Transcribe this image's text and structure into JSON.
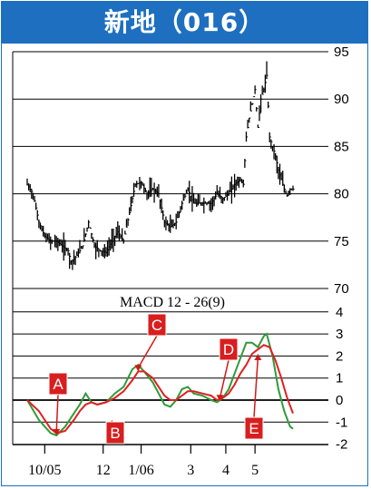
{
  "title": "新地（016）",
  "chart_data": [
    {
      "type": "candlestick",
      "title": "",
      "y_ticks": [
        70,
        75,
        80,
        85,
        90,
        95
      ],
      "ylim": [
        70,
        95
      ],
      "grid": "horizontal",
      "price_path": [
        [
          0,
          81
        ],
        [
          2,
          80
        ],
        [
          4,
          77
        ],
        [
          6,
          75.5
        ],
        [
          8,
          75
        ],
        [
          10,
          75
        ],
        [
          12,
          74.5
        ],
        [
          14,
          74
        ],
        [
          15,
          72.8
        ],
        [
          17,
          73.5
        ],
        [
          19,
          74.5
        ],
        [
          21,
          77
        ],
        [
          23,
          74.5
        ],
        [
          25,
          74
        ],
        [
          27,
          73.8
        ],
        [
          29,
          75
        ],
        [
          31,
          76
        ],
        [
          33,
          75
        ],
        [
          35,
          78
        ],
        [
          37,
          81
        ],
        [
          39,
          81.2
        ],
        [
          41,
          80
        ],
        [
          43,
          80.5
        ],
        [
          45,
          80
        ],
        [
          47,
          77
        ],
        [
          49,
          76.5
        ],
        [
          51,
          77
        ],
        [
          53,
          79
        ],
        [
          55,
          80.5
        ],
        [
          57,
          79
        ],
        [
          59,
          79
        ],
        [
          61,
          79
        ],
        [
          63,
          79
        ],
        [
          65,
          80
        ],
        [
          67,
          79.5
        ],
        [
          69,
          80
        ],
        [
          71,
          81
        ],
        [
          73,
          81.5
        ],
        [
          74,
          81
        ],
        [
          75,
          86
        ],
        [
          76,
          88
        ],
        [
          78,
          91
        ],
        [
          79,
          87
        ],
        [
          80,
          90
        ],
        [
          81,
          91
        ],
        [
          82,
          92.5
        ],
        [
          83,
          86
        ],
        [
          84,
          85
        ],
        [
          85,
          84
        ],
        [
          86,
          82.5
        ],
        [
          87,
          81.5
        ],
        [
          88,
          80.5
        ],
        [
          89,
          79.8
        ],
        [
          90,
          80.5
        ],
        [
          91,
          80.5
        ]
      ]
    },
    {
      "type": "line",
      "title": "MACD 12 - 26(9)",
      "y_ticks": [
        4,
        3,
        2,
        1,
        0,
        -1,
        -2
      ],
      "ylim": [
        -2,
        4
      ],
      "grid": "horizontal",
      "series": [
        {
          "name": "",
          "color": "#2f9a3a",
          "values": [
            [
              0,
              0
            ],
            [
              4,
              -0.9
            ],
            [
              8,
              -1.5
            ],
            [
              10,
              -1.6
            ],
            [
              13,
              -1.2
            ],
            [
              16,
              -0.6
            ],
            [
              18,
              -0.2
            ],
            [
              20,
              0.3
            ],
            [
              22,
              -0.1
            ],
            [
              24,
              -0.2
            ],
            [
              27,
              -0.1
            ],
            [
              30,
              0.3
            ],
            [
              33,
              0.6
            ],
            [
              36,
              1.4
            ],
            [
              38,
              1.6
            ],
            [
              40,
              1.3
            ],
            [
              43,
              0.8
            ],
            [
              45,
              0.3
            ],
            [
              47,
              -0.2
            ],
            [
              49,
              -0.3
            ],
            [
              51,
              0
            ],
            [
              53,
              0.5
            ],
            [
              55,
              0.6
            ],
            [
              57,
              0.3
            ],
            [
              60,
              0.2
            ],
            [
              63,
              0
            ],
            [
              65,
              -0.1
            ],
            [
              67,
              0.1
            ],
            [
              69,
              0.5
            ],
            [
              71,
              1.2
            ],
            [
              73,
              1.9
            ],
            [
              75,
              2.6
            ],
            [
              77,
              2.6
            ],
            [
              79,
              2.4
            ],
            [
              81,
              2.9
            ],
            [
              82,
              3.0
            ],
            [
              84,
              2.0
            ],
            [
              86,
              0.5
            ],
            [
              88,
              -0.5
            ],
            [
              90,
              -1.2
            ],
            [
              91,
              -1.3
            ]
          ]
        },
        {
          "name": "",
          "color": "#e02020",
          "values": [
            [
              0,
              0
            ],
            [
              4,
              -0.5
            ],
            [
              8,
              -1.3
            ],
            [
              10,
              -1.5
            ],
            [
              13,
              -1.4
            ],
            [
              16,
              -0.9
            ],
            [
              18,
              -0.5
            ],
            [
              20,
              -0.2
            ],
            [
              22,
              -0.1
            ],
            [
              24,
              -0.2
            ],
            [
              27,
              -0.1
            ],
            [
              30,
              0.1
            ],
            [
              33,
              0.4
            ],
            [
              36,
              0.9
            ],
            [
              38,
              1.3
            ],
            [
              40,
              1.3
            ],
            [
              43,
              1.0
            ],
            [
              45,
              0.6
            ],
            [
              47,
              0.2
            ],
            [
              49,
              0
            ],
            [
              51,
              0
            ],
            [
              53,
              0.2
            ],
            [
              55,
              0.4
            ],
            [
              57,
              0.4
            ],
            [
              60,
              0.3
            ],
            [
              63,
              0.2
            ],
            [
              65,
              0
            ],
            [
              67,
              0.1
            ],
            [
              69,
              0.3
            ],
            [
              71,
              0.7
            ],
            [
              73,
              1.2
            ],
            [
              75,
              1.6
            ],
            [
              77,
              2.1
            ],
            [
              79,
              2.3
            ],
            [
              81,
              2.5
            ],
            [
              83,
              2.4
            ],
            [
              85,
              1.8
            ],
            [
              87,
              1.0
            ],
            [
              89,
              0.1
            ],
            [
              91,
              -0.6
            ]
          ]
        }
      ],
      "annotations": [
        {
          "label": "A",
          "x": 10,
          "y": -1.6
        },
        {
          "label": "B",
          "x": 29,
          "y": -0.9
        },
        {
          "label": "C",
          "x": 38,
          "y": 1.3
        },
        {
          "label": "D",
          "x": 66,
          "y": -0.05
        },
        {
          "label": "E",
          "x": 79,
          "y": 2.1
        }
      ]
    }
  ],
  "x_tick_labels": [
    {
      "label": "10/05",
      "x": 6
    },
    {
      "label": "12",
      "x": 26
    },
    {
      "label": "1/06",
      "x": 39
    },
    {
      "label": "3",
      "x": 56
    },
    {
      "label": "4",
      "x": 68
    },
    {
      "label": "5",
      "x": 78
    }
  ]
}
